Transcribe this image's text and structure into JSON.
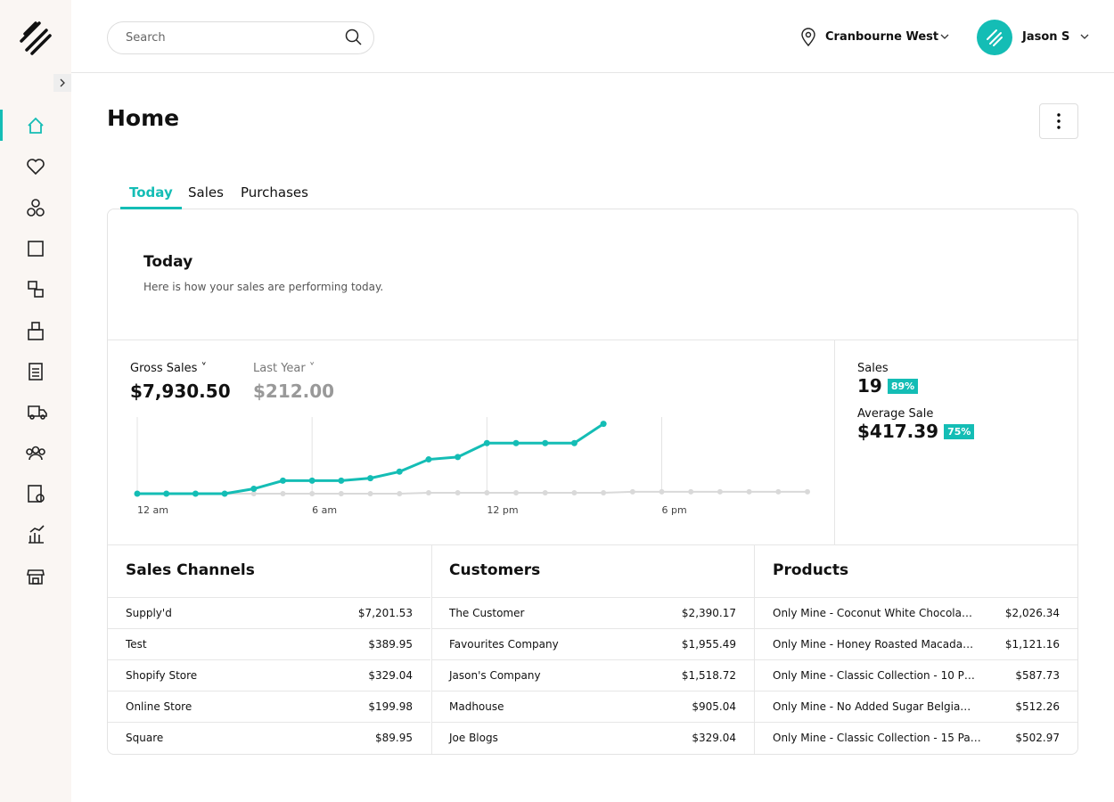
{
  "search": {
    "placeholder": "Search"
  },
  "header": {
    "location": "Cranbourne West",
    "user": "Jason S"
  },
  "page": {
    "title": "Home"
  },
  "tabs": [
    "Today",
    "Sales",
    "Purchases"
  ],
  "active_tab": 0,
  "today": {
    "title": "Today",
    "subtitle": "Here is how your sales are performing today."
  },
  "summary": {
    "gross_label": "Gross Sales",
    "gross_value": "$7,930.50",
    "compare_label": "Last Year",
    "compare_value": "$212.00"
  },
  "stats": [
    {
      "label": "Sales",
      "value": "19",
      "badge": "89%"
    },
    {
      "label": "Average Sale",
      "value": "$417.39",
      "badge": "75%"
    }
  ],
  "chart_data": {
    "type": "line",
    "x": [
      0,
      1,
      2,
      3,
      4,
      5,
      6,
      7,
      8,
      9,
      10,
      11,
      12,
      13,
      14,
      15,
      16,
      17,
      18,
      19,
      20,
      21,
      22,
      23
    ],
    "xlim": [
      0,
      23
    ],
    "xticks": [
      {
        "value": 0,
        "label": "12 am"
      },
      {
        "value": 6,
        "label": "6 am"
      },
      {
        "value": 12,
        "label": "12 pm"
      },
      {
        "value": 18,
        "label": "6 pm"
      }
    ],
    "ylim": [
      0,
      8700
    ],
    "grid": true,
    "series": [
      {
        "name": "Gross Sales",
        "color": "#14bdb5",
        "values": [
          0,
          0,
          0,
          0,
          555,
          1480,
          1480,
          1480,
          1760,
          2500,
          3890,
          4160,
          5740,
          5740,
          5740,
          5740,
          7930.5,
          null,
          null,
          null,
          null,
          null,
          null,
          null
        ]
      },
      {
        "name": "Last Year",
        "color": "#d9d9d9",
        "values": [
          0,
          0,
          0,
          0,
          0,
          0,
          0,
          0,
          0,
          0,
          100,
          100,
          100,
          100,
          100,
          100,
          100,
          212,
          212,
          212,
          212,
          212,
          212,
          212
        ]
      }
    ]
  },
  "tables": [
    {
      "title": "Sales Channels",
      "rows": [
        [
          "Supply'd",
          "$7,201.53"
        ],
        [
          "Test",
          "$389.95"
        ],
        [
          "Shopify Store",
          "$329.04"
        ],
        [
          "Online Store",
          "$199.98"
        ],
        [
          "Square",
          "$89.95"
        ]
      ]
    },
    {
      "title": "Customers",
      "rows": [
        [
          "The Customer",
          "$2,390.17"
        ],
        [
          "Favourites Company",
          "$1,955.49"
        ],
        [
          "Jason's Company",
          "$1,518.72"
        ],
        [
          "Madhouse",
          "$905.04"
        ],
        [
          "Joe Blogs",
          "$329.04"
        ]
      ]
    },
    {
      "title": "Products",
      "rows": [
        [
          "Only Mine - Coconut White Chocola…",
          "$2,026.34"
        ],
        [
          "Only Mine - Honey Roasted Macada…",
          "$1,121.16"
        ],
        [
          "Only Mine - Classic Collection - 10 P…",
          "$587.73"
        ],
        [
          "Only Mine - No Added Sugar Belgia…",
          "$512.26"
        ],
        [
          "Only Mine - Classic Collection - 15 Pa…",
          "$502.97"
        ]
      ]
    }
  ]
}
